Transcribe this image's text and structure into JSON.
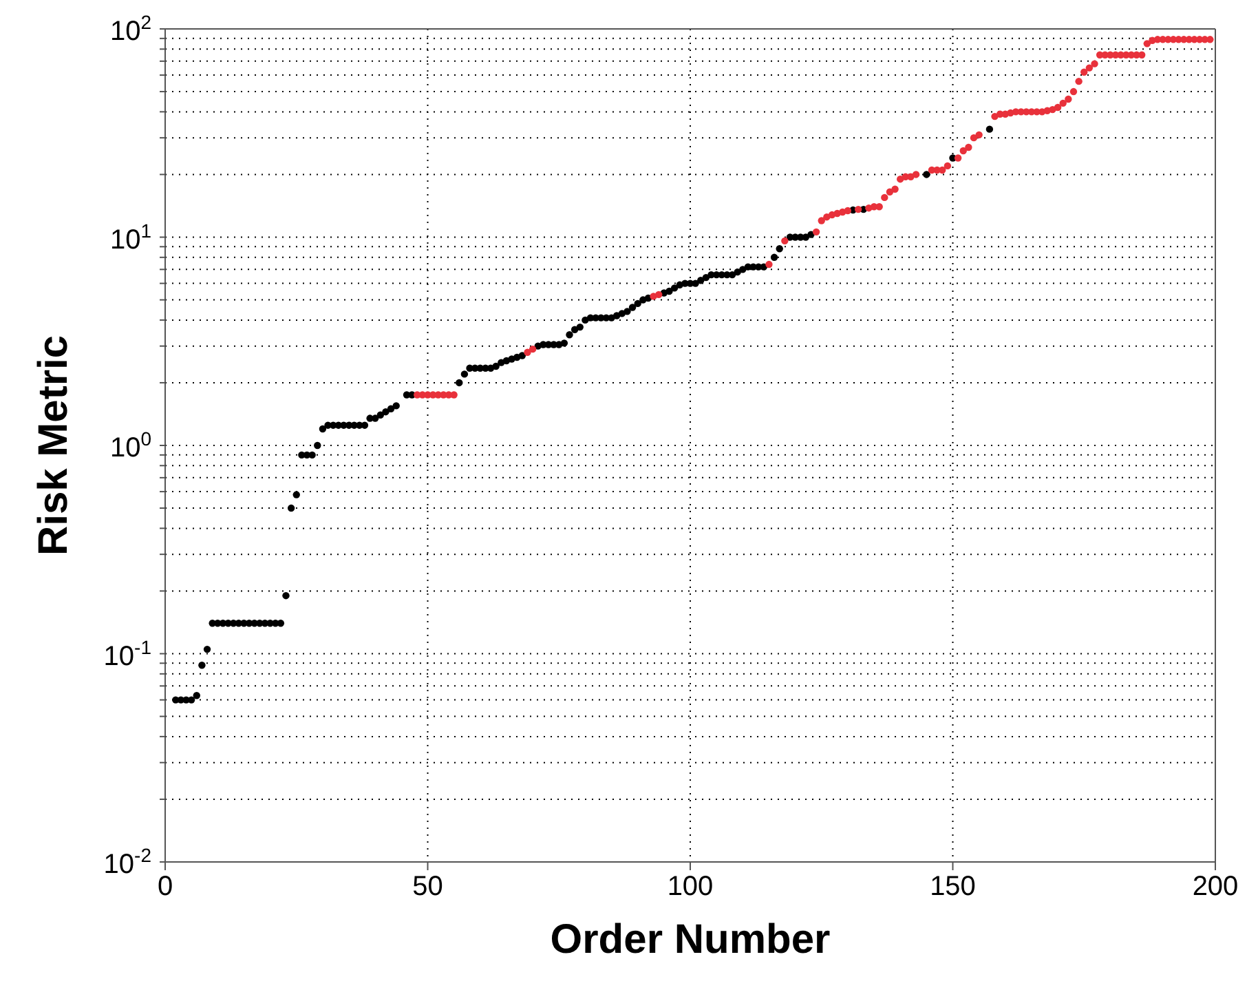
{
  "chart_data": {
    "type": "scatter",
    "xlabel": "Order Number",
    "ylabel": "Risk Metric",
    "xlim": [
      0,
      200
    ],
    "xticks": [
      0,
      50,
      100,
      150,
      200
    ],
    "ylim": [
      0.01,
      100
    ],
    "yticks": [
      {
        "value": 0.01,
        "label": "10$^{-2}$"
      },
      {
        "value": 0.02,
        "label": null
      },
      {
        "value": 0.03,
        "label": null
      },
      {
        "value": 0.04,
        "label": null
      },
      {
        "value": 0.05,
        "label": null
      },
      {
        "value": 0.06,
        "label": null
      },
      {
        "value": 0.07,
        "label": null
      },
      {
        "value": 0.08,
        "label": null
      },
      {
        "value": 0.09,
        "label": null
      },
      {
        "value": 0.1,
        "label": "10$^{-1}$"
      },
      {
        "value": 0.2,
        "label": null
      },
      {
        "value": 0.3,
        "label": null
      },
      {
        "value": 0.4,
        "label": null
      },
      {
        "value": 0.5,
        "label": null
      },
      {
        "value": 0.6,
        "label": null
      },
      {
        "value": 0.7,
        "label": null
      },
      {
        "value": 0.8,
        "label": null
      },
      {
        "value": 0.9,
        "label": null
      },
      {
        "value": 1,
        "label": "10$^{0}$"
      },
      {
        "value": 2,
        "label": null
      },
      {
        "value": 3,
        "label": null
      },
      {
        "value": 4,
        "label": null
      },
      {
        "value": 5,
        "label": null
      },
      {
        "value": 6,
        "label": null
      },
      {
        "value": 7,
        "label": null
      },
      {
        "value": 8,
        "label": null
      },
      {
        "value": 9,
        "label": null
      },
      {
        "value": 10,
        "label": "10$^{1}$"
      },
      {
        "value": 20,
        "label": null
      },
      {
        "value": 30,
        "label": null
      },
      {
        "value": 40,
        "label": null
      },
      {
        "value": 50,
        "label": null
      },
      {
        "value": 60,
        "label": null
      },
      {
        "value": 70,
        "label": null
      },
      {
        "value": 80,
        "label": null
      },
      {
        "value": 90,
        "label": null
      },
      {
        "value": 100,
        "label": "10$^{2}$"
      }
    ],
    "log": "y",
    "grid": true,
    "marker": "circle",
    "legend": false,
    "series": [
      {
        "color": "#000000",
        "x": [
          2,
          3,
          4,
          5,
          6,
          7,
          8,
          9,
          10,
          11,
          12,
          13,
          14,
          15,
          16,
          17,
          18,
          19,
          20,
          21,
          22,
          23,
          24,
          25,
          26,
          27,
          28,
          29,
          30,
          31,
          32,
          33,
          34,
          35,
          36,
          37,
          38,
          39,
          40,
          41,
          42,
          43,
          44,
          46,
          47,
          56,
          57,
          58,
          59,
          60,
          61,
          62,
          63,
          64,
          65,
          66,
          67,
          68,
          71,
          72,
          73,
          74,
          75,
          76,
          77,
          78,
          79,
          80,
          81,
          82,
          83,
          84,
          85,
          86,
          87,
          88,
          89,
          90,
          91,
          92,
          95,
          96,
          97,
          98,
          99,
          100,
          101,
          102,
          103,
          104,
          105,
          106,
          107,
          108,
          109,
          110,
          111,
          112,
          113,
          114,
          116,
          117,
          119,
          120,
          121,
          122,
          123,
          131,
          133,
          145,
          150,
          157
        ],
        "values": [
          0.06,
          0.06,
          0.06,
          0.06,
          0.063,
          0.088,
          0.105,
          0.14,
          0.14,
          0.14,
          0.14,
          0.14,
          0.14,
          0.14,
          0.14,
          0.14,
          0.14,
          0.14,
          0.14,
          0.14,
          0.14,
          0.19,
          0.5,
          0.58,
          0.9,
          0.9,
          0.9,
          1.0,
          1.2,
          1.25,
          1.25,
          1.25,
          1.25,
          1.25,
          1.25,
          1.25,
          1.25,
          1.35,
          1.35,
          1.4,
          1.45,
          1.5,
          1.55,
          1.75,
          1.75,
          2.0,
          2.2,
          2.35,
          2.35,
          2.35,
          2.35,
          2.35,
          2.4,
          2.5,
          2.55,
          2.6,
          2.65,
          2.7,
          3.0,
          3.05,
          3.05,
          3.05,
          3.05,
          3.1,
          3.4,
          3.6,
          3.7,
          4.0,
          4.1,
          4.1,
          4.1,
          4.1,
          4.1,
          4.2,
          4.3,
          4.4,
          4.6,
          4.8,
          5.0,
          5.1,
          5.4,
          5.5,
          5.7,
          5.9,
          6.0,
          6.0,
          6.0,
          6.2,
          6.4,
          6.6,
          6.6,
          6.6,
          6.6,
          6.6,
          6.8,
          7.0,
          7.2,
          7.2,
          7.2,
          7.2,
          8.0,
          8.8,
          10,
          10,
          10,
          10,
          10.3,
          13.5,
          13.6,
          20,
          24,
          33
        ]
      },
      {
        "color": "#e8313b",
        "x": [
          48,
          49,
          50,
          51,
          52,
          53,
          54,
          55,
          69,
          70,
          93,
          94,
          115,
          118,
          124,
          125,
          126,
          127,
          128,
          129,
          130,
          132,
          134,
          135,
          136,
          137,
          138,
          139,
          140,
          141,
          142,
          143,
          146,
          147,
          148,
          149,
          151,
          152,
          153,
          154,
          155,
          158,
          159,
          160,
          161,
          162,
          163,
          164,
          165,
          166,
          167,
          168,
          169,
          170,
          171,
          172,
          173,
          174,
          175,
          176,
          177,
          178,
          179,
          180,
          181,
          182,
          183,
          184,
          185,
          186,
          187,
          188,
          189,
          190,
          191,
          192,
          193,
          194,
          195,
          196,
          197,
          198,
          199
        ],
        "values": [
          1.75,
          1.75,
          1.75,
          1.75,
          1.75,
          1.75,
          1.75,
          1.75,
          2.8,
          2.9,
          5.2,
          5.3,
          7.4,
          9.6,
          10.6,
          12,
          12.5,
          12.8,
          13,
          13.2,
          13.4,
          13.6,
          13.8,
          14,
          14,
          15.5,
          16.5,
          17,
          19,
          19.5,
          19.5,
          20,
          21,
          21,
          21,
          22,
          24,
          26,
          27,
          30,
          31,
          38,
          39,
          39,
          39.5,
          40,
          40,
          40,
          40,
          40,
          40,
          40.5,
          41,
          42,
          44,
          46,
          50,
          56,
          62,
          65,
          68,
          75,
          75,
          75,
          75,
          75,
          75,
          75,
          75,
          75,
          85,
          88,
          89,
          89,
          89,
          89,
          89,
          89,
          89,
          89,
          89,
          89,
          89
        ]
      }
    ]
  }
}
